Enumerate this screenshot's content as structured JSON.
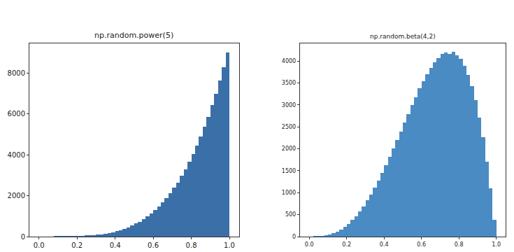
{
  "chart_data": [
    {
      "type": "histogram",
      "title": "np.random.power(5)",
      "color": "#3b6fa8",
      "grid": false,
      "bins": [
        0.0,
        0.02,
        0.04,
        0.06,
        0.08,
        0.1,
        0.12,
        0.14,
        0.16,
        0.18,
        0.2,
        0.22,
        0.24,
        0.26,
        0.28,
        0.3,
        0.32,
        0.34,
        0.36,
        0.38,
        0.4,
        0.42,
        0.44,
        0.46,
        0.48,
        0.5,
        0.52,
        0.54,
        0.56,
        0.58,
        0.6,
        0.62,
        0.64,
        0.66,
        0.68,
        0.7,
        0.72,
        0.74,
        0.76,
        0.78,
        0.8,
        0.82,
        0.84,
        0.86,
        0.88,
        0.9,
        0.92,
        0.94,
        0.96,
        0.98,
        1.0
      ],
      "counts": [
        0,
        0,
        0,
        0,
        1,
        1,
        3,
        5,
        8,
        12,
        18,
        27,
        36,
        51,
        65,
        88,
        110,
        142,
        174,
        219,
        262,
        323,
        381,
        460,
        536,
        638,
        735,
        861,
        984,
        1140,
        1290,
        1481,
        1667,
        1893,
        2117,
        2386,
        2652,
        2970,
        3285,
        3655,
        4024,
        4452,
        4880,
        5372,
        5868,
        6430,
        6998,
        7636,
        8284,
        9005
      ],
      "xlim": [
        -0.05,
        1.05
      ],
      "xticks": [
        {
          "value": 0,
          "label": "0.0"
        },
        {
          "value": 0.2,
          "label": "0.2"
        },
        {
          "value": 0.4,
          "label": "0.4"
        },
        {
          "value": 0.6,
          "label": "0.6"
        },
        {
          "value": 0.8,
          "label": "0.8"
        },
        {
          "value": 1,
          "label": "1.0"
        }
      ],
      "ylim": [
        0,
        9450
      ],
      "yticks": [
        0,
        2000,
        4000,
        6000,
        8000
      ]
    },
    {
      "type": "histogram",
      "title": "np.random.beta(4,2)",
      "color": "#4a8bc4",
      "grid": false,
      "bins": [
        0.0,
        0.02,
        0.04,
        0.06,
        0.08,
        0.1,
        0.12,
        0.14,
        0.16,
        0.18,
        0.2,
        0.22,
        0.24,
        0.26,
        0.28,
        0.3,
        0.32,
        0.34,
        0.36,
        0.38,
        0.4,
        0.42,
        0.44,
        0.46,
        0.48,
        0.5,
        0.52,
        0.54,
        0.56,
        0.58,
        0.6,
        0.62,
        0.64,
        0.66,
        0.68,
        0.7,
        0.72,
        0.74,
        0.76,
        0.78,
        0.8,
        0.82,
        0.84,
        0.86,
        0.88,
        0.9,
        0.92,
        0.94,
        0.96,
        0.98,
        1.0
      ],
      "counts": [
        0,
        1,
        5,
        13,
        27,
        47,
        76,
        116,
        162,
        224,
        290,
        377,
        466,
        578,
        690,
        826,
        960,
        1118,
        1273,
        1450,
        1622,
        1816,
        2001,
        2205,
        2396,
        2604,
        2795,
        2998,
        3180,
        3372,
        3537,
        3705,
        3841,
        3975,
        4069,
        4156,
        4196,
        4168,
        4205,
        4137,
        4043,
        3884,
        3690,
        3420,
        3106,
        2709,
        2256,
        1711,
        1098,
        386
      ],
      "xlim": [
        -0.05,
        1.05
      ],
      "xticks": [
        {
          "value": 0,
          "label": "0.0"
        },
        {
          "value": 0.2,
          "label": "0.2"
        },
        {
          "value": 0.4,
          "label": "0.4"
        },
        {
          "value": 0.6,
          "label": "0.6"
        },
        {
          "value": 0.8,
          "label": "0.8"
        },
        {
          "value": 1,
          "label": "1.0"
        }
      ],
      "ylim": [
        0,
        4400
      ],
      "yticks": [
        0,
        500,
        1000,
        1500,
        2000,
        2500,
        3000,
        3500,
        4000
      ]
    }
  ]
}
